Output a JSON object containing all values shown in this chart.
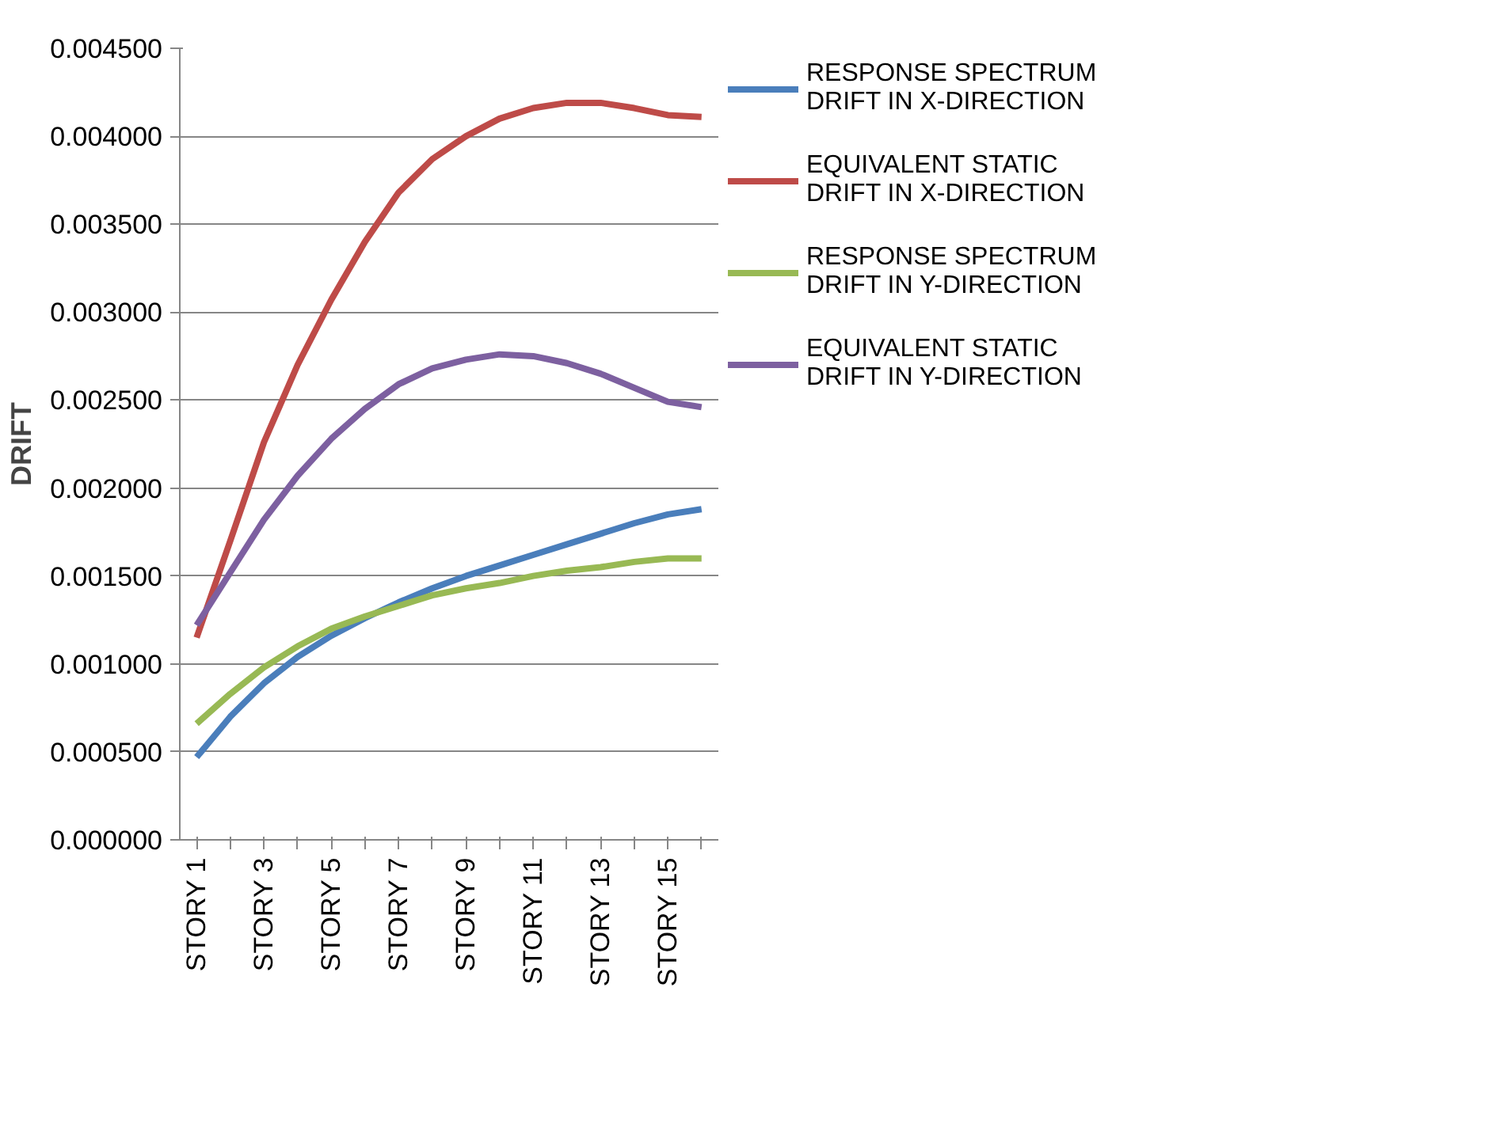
{
  "chart_data": {
    "type": "line",
    "ylabel": "DRIFT",
    "categories": [
      "STORY 1",
      null,
      "STORY 3",
      null,
      "STORY 5",
      null,
      "STORY 7",
      null,
      "STORY 9",
      null,
      "STORY 11",
      null,
      "STORY 13",
      null,
      "STORY 15",
      null
    ],
    "series": [
      {
        "name": "RESPONSE SPECTRUM DRIFT IN X-DIRECTION",
        "color": "#4a7ebb",
        "values": [
          0.00047,
          0.0007,
          0.00089,
          0.00104,
          0.00116,
          0.00126,
          0.00135,
          0.00143,
          0.0015,
          0.00156,
          0.00162,
          0.00168,
          0.00174,
          0.0018,
          0.00185,
          0.00188
        ]
      },
      {
        "name": "EQUIVALENT STATIC DRIFT IN X-DIRECTION",
        "color": "#be4b48",
        "values": [
          0.00115,
          0.0017,
          0.00226,
          0.0027,
          0.00307,
          0.0034,
          0.00368,
          0.00387,
          0.004,
          0.0041,
          0.00416,
          0.00419,
          0.00419,
          0.00416,
          0.00412,
          0.00411
        ]
      },
      {
        "name": "RESPONSE SPECTRUM DRIFT IN Y-DIRECTION",
        "color": "#98b954",
        "values": [
          0.00066,
          0.00083,
          0.00098,
          0.0011,
          0.0012,
          0.00127,
          0.00133,
          0.00139,
          0.00143,
          0.00146,
          0.0015,
          0.00153,
          0.00155,
          0.00158,
          0.0016,
          0.0016
        ]
      },
      {
        "name": "EQUIVALENT STATIC DRIFT IN Y-DIRECTION",
        "color": "#7d60a0",
        "values": [
          0.00122,
          0.00152,
          0.00182,
          0.00207,
          0.00228,
          0.00245,
          0.00259,
          0.00268,
          0.00273,
          0.00276,
          0.00275,
          0.00271,
          0.00265,
          0.00257,
          0.00249,
          0.00246
        ]
      }
    ],
    "ylim": [
      0,
      0.0045
    ],
    "yticks": [
      {
        "value": 0,
        "label": "0.000000"
      },
      {
        "value": 0.0005,
        "label": "0.000500"
      },
      {
        "value": 0.001,
        "label": "0.001000"
      },
      {
        "value": 0.0015,
        "label": "0.001500"
      },
      {
        "value": 0.002,
        "label": "0.002000"
      },
      {
        "value": 0.0025,
        "label": "0.002500"
      },
      {
        "value": 0.003,
        "label": "0.003000"
      },
      {
        "value": 0.0035,
        "label": "0.003500"
      },
      {
        "value": 0.004,
        "label": "0.004000"
      },
      {
        "value": 0.0045,
        "label": "0.004500"
      }
    ],
    "grid": "y",
    "legend": "right",
    "marker": "none",
    "line_style": "solid"
  }
}
